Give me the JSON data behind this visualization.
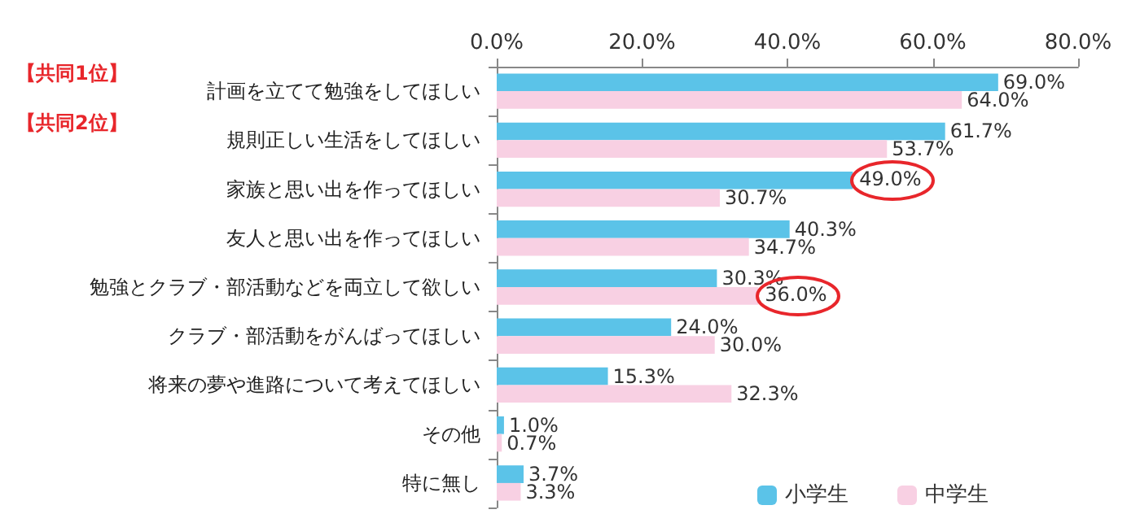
{
  "chart_data": {
    "type": "bar",
    "orientation": "horizontal",
    "categories": [
      "計画を立てて勉強をしてほしい",
      "規則正しい生活をしてほしい",
      "家族と思い出を作ってほしい",
      "友人と思い出を作ってほしい",
      "勉強とクラブ・部活動などを両立して欲しい",
      "クラブ・部活動をがんばってほしい",
      "将来の夢や進路について考えてほしい",
      "その他",
      "特に無し"
    ],
    "series": [
      {
        "name": "小学生",
        "color": "#5bc3e8",
        "values": [
          69.0,
          61.7,
          49.0,
          40.3,
          30.3,
          24.0,
          15.3,
          1.0,
          3.7
        ],
        "value_labels": [
          "69.0%",
          "61.7%",
          null,
          "40.3%",
          "30.3%",
          "24.0%",
          "15.3%",
          "1.0%",
          "3.7%"
        ]
      },
      {
        "name": "中学生",
        "color": "#f8d0e3",
        "values": [
          64.0,
          53.7,
          30.7,
          34.7,
          36.0,
          30.0,
          32.3,
          0.7,
          3.3
        ],
        "value_labels": [
          "64.0%",
          "53.7%",
          "30.7%",
          "34.7%",
          null,
          "30.0%",
          "32.3%",
          "0.7%",
          "3.3%"
        ]
      }
    ],
    "xlim": [
      0,
      80
    ],
    "xticks": [
      {
        "value": 0,
        "label": "0.0%"
      },
      {
        "value": 20,
        "label": "20.0%"
      },
      {
        "value": 40,
        "label": "40.0%"
      },
      {
        "value": 60,
        "label": "60.0%"
      },
      {
        "value": 80,
        "label": "80.0%"
      }
    ],
    "annotations": [
      "【共同1位】",
      "【共同2位】",
      {
        "text": "49.0%",
        "x": 49.0,
        "y": "家族と思い出を作ってほしい"
      },
      {
        "text": "36.0%",
        "x": 36.0,
        "y": "勉強とクラブ・部活動などを両立して欲しい"
      }
    ],
    "legend": "bottom right",
    "grid": false
  }
}
